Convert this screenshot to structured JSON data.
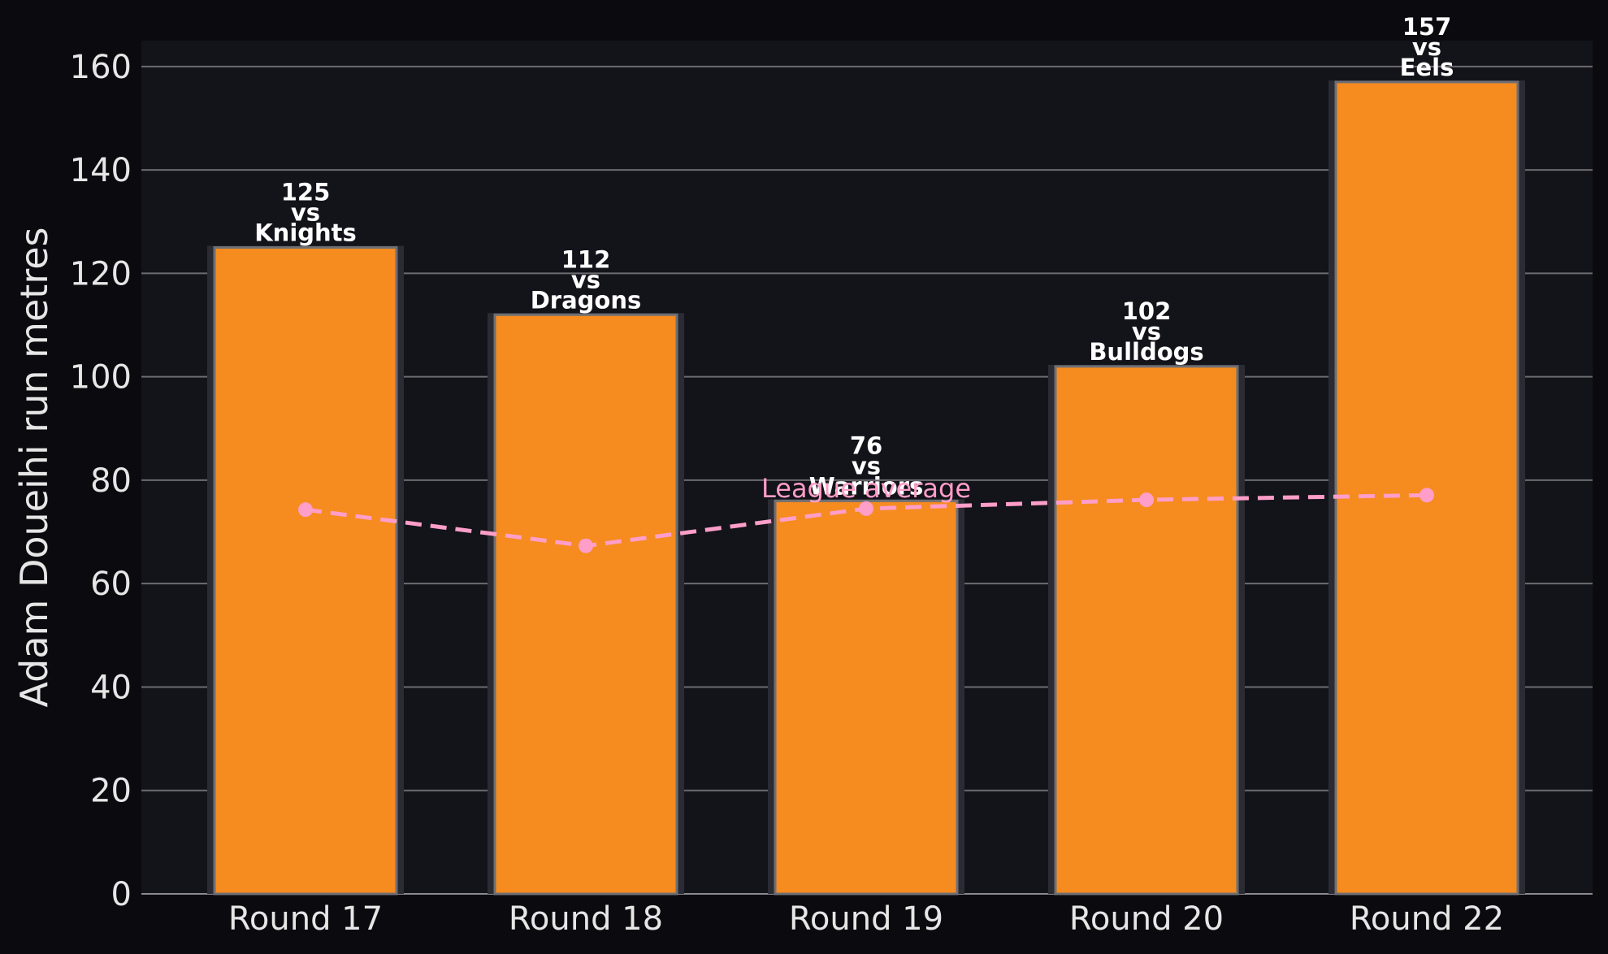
{
  "chart_data": {
    "type": "bar",
    "categories": [
      "Round 17",
      "Round 18",
      "Round 19",
      "Round 20",
      "Round 22"
    ],
    "series": [
      {
        "values": [
          125,
          112,
          76,
          102,
          157
        ],
        "bar_labels": [
          [
            "125",
            "vs",
            "Knights"
          ],
          [
            "112",
            "vs",
            "Dragons"
          ],
          [
            "76",
            "vs",
            "Warriors"
          ],
          [
            "102",
            "vs",
            "Bulldogs"
          ],
          [
            "157",
            "vs",
            "Eels"
          ]
        ],
        "color": "#f68b1f"
      },
      {
        "name": "League average",
        "type": "line",
        "style": "dashed",
        "values": [
          74.3,
          67.3,
          74.5,
          76.2,
          77.1
        ],
        "color": "#ff9ec8"
      }
    ],
    "ylabel": "Adam Doueihi run metres",
    "xlabel": "",
    "ylim": [
      0,
      165
    ],
    "yticks": [
      "0",
      "20",
      "40",
      "60",
      "80",
      "100",
      "120",
      "140",
      "160"
    ],
    "grid": "horizontal",
    "colors": {
      "background": "#0b0b0f",
      "plot_background": "#13131a",
      "grid": "#6b6b70",
      "text": "#e6e6e6"
    }
  }
}
